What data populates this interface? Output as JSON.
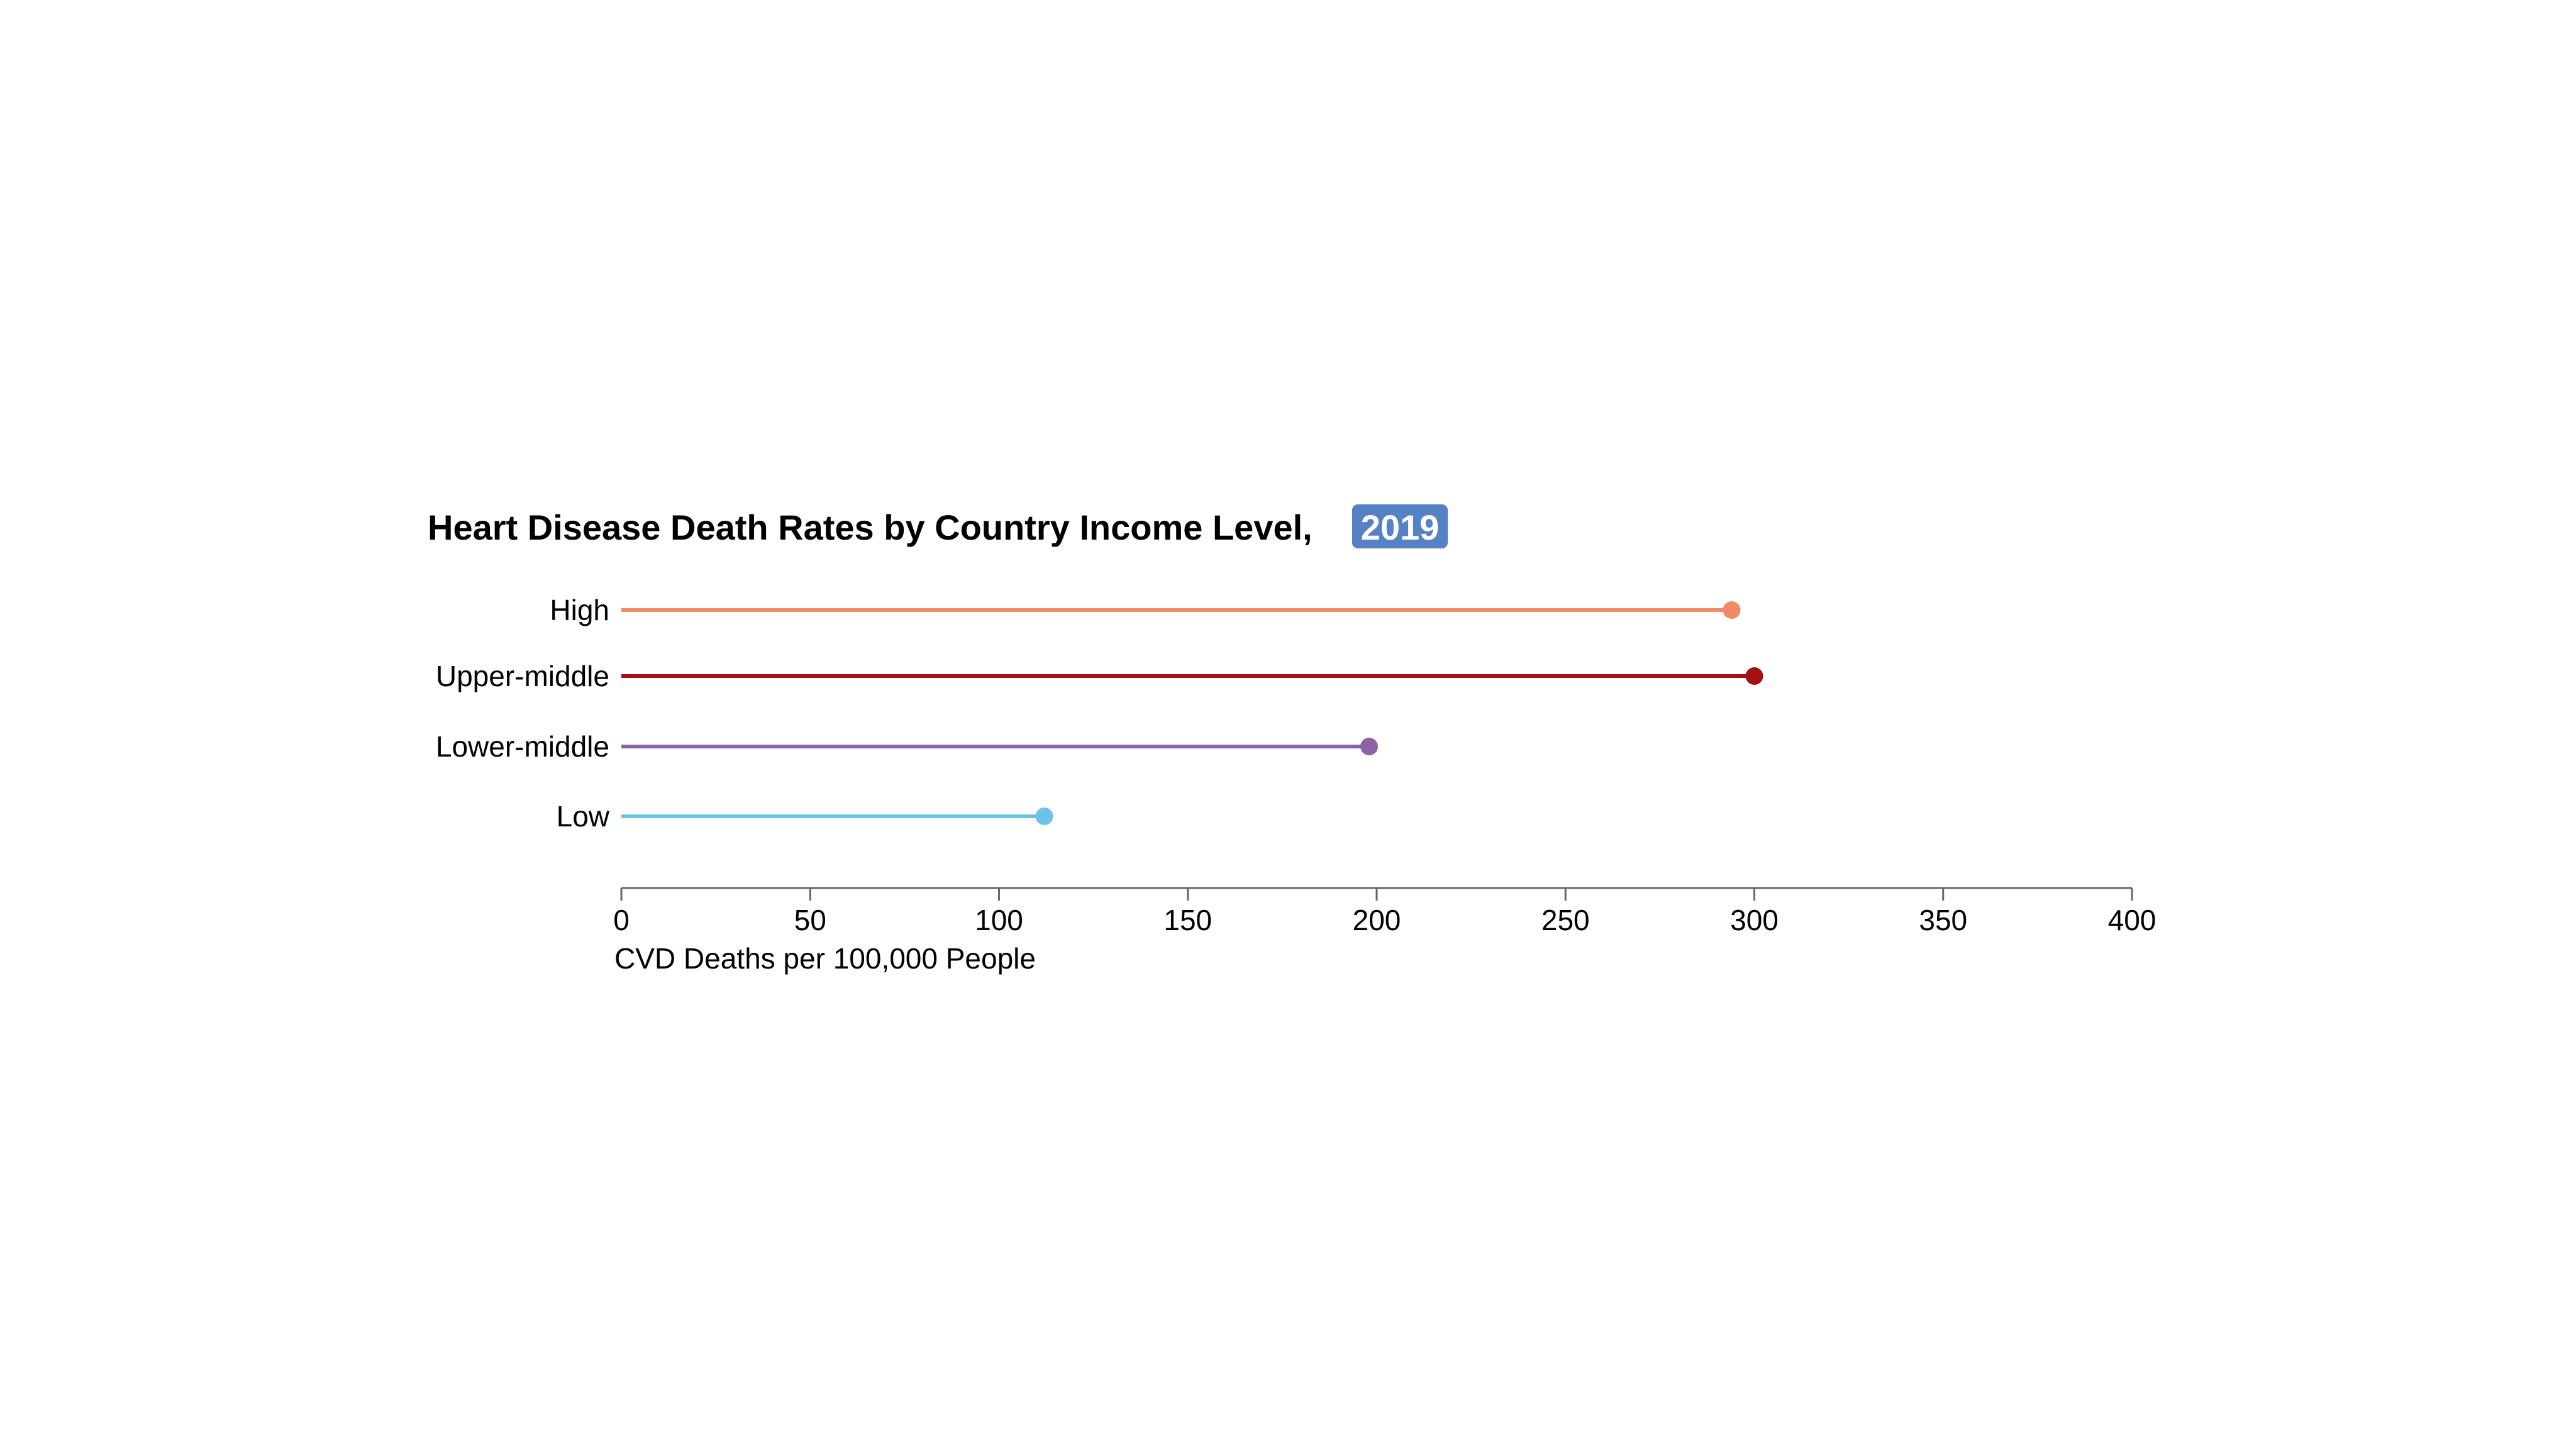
{
  "chart_data": {
    "type": "lollipop",
    "title": "Heart Disease Death Rates by Country Income Level,",
    "year_badge": "2019",
    "xlabel": "CVD Deaths per 100,000 People",
    "ylabel": "",
    "xlim": [
      0,
      400
    ],
    "x_ticks": [
      0,
      50,
      100,
      150,
      200,
      250,
      300,
      350,
      400
    ],
    "grid": false,
    "categories": [
      "High",
      "Upper-middle",
      "Lower-middle",
      "Low"
    ],
    "values": [
      294,
      300,
      198,
      112
    ],
    "colors": [
      "#f08a67",
      "#a50f15",
      "#8e62a8",
      "#6cc2ea"
    ]
  },
  "badge_color": "#5681c4",
  "axis_color": "#666666"
}
